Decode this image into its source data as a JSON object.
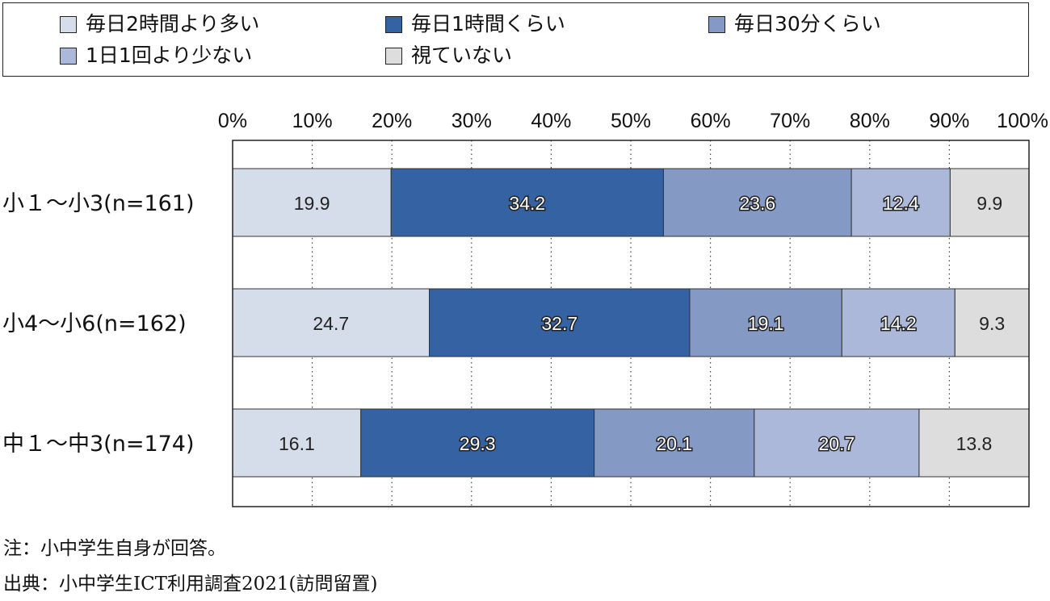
{
  "chart_data": {
    "type": "bar",
    "orientation": "horizontal",
    "stacked": true,
    "percent": true,
    "categories": [
      "小１～小3(n=161)",
      "小4～小6(n=162)",
      "中１～中3(n=174)"
    ],
    "series": [
      {
        "name": "毎日2時間より多い",
        "color": "#d5dcea",
        "text_color": "#222222",
        "values": [
          19.9,
          24.7,
          16.1
        ]
      },
      {
        "name": "毎日1時間くらい",
        "color": "#3562a2",
        "text_color": "#ffffff",
        "values": [
          34.2,
          32.7,
          29.3
        ]
      },
      {
        "name": "毎日30分くらい",
        "color": "#8599c5",
        "text_color": "#ffffff",
        "values": [
          23.6,
          19.1,
          20.1
        ]
      },
      {
        "name": "1日1回より少ない",
        "color": "#abb8da",
        "text_color": "#ffffff",
        "values": [
          12.4,
          14.2,
          20.7
        ]
      },
      {
        "name": "視ていない",
        "color": "#dddddd",
        "text_color": "#222222",
        "values": [
          9.9,
          9.3,
          13.8
        ]
      }
    ],
    "x_ticks": [
      "0%",
      "10%",
      "20%",
      "30%",
      "40%",
      "50%",
      "60%",
      "70%",
      "80%",
      "90%",
      "100%"
    ],
    "xlim": [
      0,
      100
    ],
    "grid": "vertical-dotted",
    "legend_position": "top"
  },
  "notes": {
    "note": "注：小中学生自身が回答。",
    "source": "出典：小中学生ICT利用調査2021(訪問留置)"
  }
}
